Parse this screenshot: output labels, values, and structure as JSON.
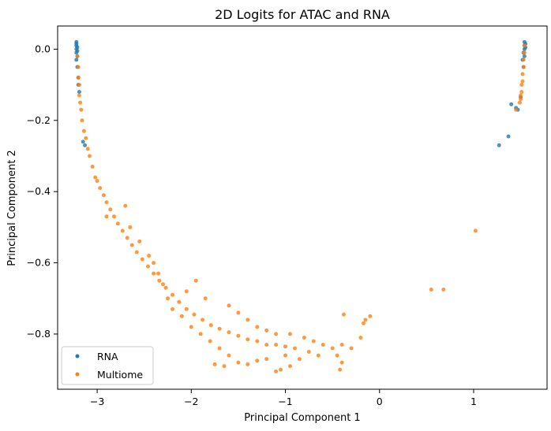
{
  "chart_data": {
    "type": "scatter",
    "title": "2D Logits for ATAC and RNA",
    "xlabel": "Principal Component 1",
    "ylabel": "Principal Component 2",
    "xlim": [
      -3.42,
      1.78
    ],
    "ylim": [
      -0.955,
      0.065
    ],
    "xticks": [
      -3,
      -2,
      -1,
      0,
      1
    ],
    "yticks": [
      0.0,
      -0.2,
      -0.4,
      -0.6,
      -0.8
    ],
    "xtick_labels": [
      "−3",
      "−2",
      "−1",
      "0",
      "1"
    ],
    "ytick_labels": [
      "0.0",
      "−0.2",
      "−0.4",
      "−0.6",
      "−0.8"
    ],
    "grid": false,
    "legend_position": "lower-left",
    "series": [
      {
        "name": "RNA",
        "color": "#1f77b4",
        "points": [
          [
            -3.22,
            0.02
          ],
          [
            -3.22,
            0.015
          ],
          [
            -3.22,
            0.01
          ],
          [
            -3.21,
            0.005
          ],
          [
            -3.22,
            0.0
          ],
          [
            -3.21,
            -0.005
          ],
          [
            -3.22,
            -0.01
          ],
          [
            -3.21,
            -0.02
          ],
          [
            -3.22,
            -0.03
          ],
          [
            -3.21,
            -0.05
          ],
          [
            -3.2,
            -0.08
          ],
          [
            -3.2,
            -0.1
          ],
          [
            -3.19,
            -0.12
          ],
          [
            -3.15,
            -0.26
          ],
          [
            -3.13,
            -0.27
          ],
          [
            1.54,
            0.02
          ],
          [
            1.55,
            0.015
          ],
          [
            1.54,
            0.01
          ],
          [
            1.55,
            0.005
          ],
          [
            1.54,
            0.0
          ],
          [
            1.53,
            -0.01
          ],
          [
            1.54,
            -0.02
          ],
          [
            1.52,
            -0.03
          ],
          [
            1.53,
            -0.05
          ],
          [
            1.27,
            -0.27
          ],
          [
            1.37,
            -0.245
          ],
          [
            1.4,
            -0.155
          ],
          [
            1.45,
            -0.165
          ],
          [
            1.47,
            -0.17
          ],
          [
            1.5,
            -0.135
          ]
        ]
      },
      {
        "name": "Multiome",
        "color": "#ff7f0e",
        "points": [
          [
            -3.21,
            -0.02
          ],
          [
            -3.2,
            -0.05
          ],
          [
            -3.2,
            -0.08
          ],
          [
            -3.19,
            -0.1
          ],
          [
            -3.19,
            -0.13
          ],
          [
            -3.18,
            -0.15
          ],
          [
            -3.17,
            -0.17
          ],
          [
            -3.16,
            -0.2
          ],
          [
            -3.14,
            -0.23
          ],
          [
            -3.12,
            -0.25
          ],
          [
            -3.1,
            -0.28
          ],
          [
            -3.08,
            -0.3
          ],
          [
            -3.05,
            -0.33
          ],
          [
            -3.02,
            -0.36
          ],
          [
            -3.0,
            -0.37
          ],
          [
            -2.97,
            -0.39
          ],
          [
            -2.93,
            -0.41
          ],
          [
            -2.9,
            -0.43
          ],
          [
            -2.86,
            -0.45
          ],
          [
            -2.82,
            -0.47
          ],
          [
            -2.78,
            -0.49
          ],
          [
            -2.73,
            -0.51
          ],
          [
            -2.68,
            -0.53
          ],
          [
            -2.63,
            -0.55
          ],
          [
            -2.58,
            -0.57
          ],
          [
            -2.52,
            -0.59
          ],
          [
            -2.46,
            -0.61
          ],
          [
            -2.4,
            -0.63
          ],
          [
            -2.34,
            -0.65
          ],
          [
            -2.27,
            -0.67
          ],
          [
            -2.2,
            -0.69
          ],
          [
            -2.13,
            -0.71
          ],
          [
            -2.05,
            -0.73
          ],
          [
            -1.97,
            -0.745
          ],
          [
            -1.88,
            -0.76
          ],
          [
            -1.79,
            -0.775
          ],
          [
            -1.7,
            -0.785
          ],
          [
            -1.6,
            -0.795
          ],
          [
            -1.5,
            -0.805
          ],
          [
            -1.4,
            -0.815
          ],
          [
            -1.3,
            -0.82
          ],
          [
            -1.2,
            -0.83
          ],
          [
            -1.1,
            -0.83
          ],
          [
            -1.0,
            -0.835
          ],
          [
            -0.9,
            -0.84
          ],
          [
            -2.65,
            -0.5
          ],
          [
            -2.55,
            -0.54
          ],
          [
            -2.45,
            -0.58
          ],
          [
            -2.4,
            -0.6
          ],
          [
            -2.35,
            -0.63
          ],
          [
            -2.3,
            -0.66
          ],
          [
            -2.25,
            -0.7
          ],
          [
            -2.2,
            -0.73
          ],
          [
            -2.1,
            -0.75
          ],
          [
            -2.0,
            -0.78
          ],
          [
            -1.9,
            -0.8
          ],
          [
            -1.8,
            -0.82
          ],
          [
            -1.7,
            -0.84
          ],
          [
            -1.6,
            -0.86
          ],
          [
            -1.5,
            -0.88
          ],
          [
            -1.4,
            -0.885
          ],
          [
            -1.3,
            -0.875
          ],
          [
            -1.2,
            -0.87
          ],
          [
            -1.0,
            -0.86
          ],
          [
            -1.6,
            -0.72
          ],
          [
            -1.5,
            -0.74
          ],
          [
            -1.4,
            -0.76
          ],
          [
            -1.3,
            -0.78
          ],
          [
            -1.2,
            -0.79
          ],
          [
            -1.1,
            -0.8
          ],
          [
            -0.95,
            -0.8
          ],
          [
            -0.8,
            -0.81
          ],
          [
            -0.7,
            -0.82
          ],
          [
            -0.6,
            -0.83
          ],
          [
            -0.5,
            -0.84
          ],
          [
            -0.45,
            -0.86
          ],
          [
            -0.4,
            -0.83
          ],
          [
            -0.4,
            -0.88
          ],
          [
            -0.42,
            -0.9
          ],
          [
            -0.38,
            -0.745
          ],
          [
            -0.3,
            -0.84
          ],
          [
            -0.2,
            -0.81
          ],
          [
            -0.15,
            -0.76
          ],
          [
            -0.17,
            -0.77
          ],
          [
            -0.1,
            -0.75
          ],
          [
            -1.95,
            -0.65
          ],
          [
            -2.05,
            -0.68
          ],
          [
            -1.85,
            -0.7
          ],
          [
            -2.9,
            -0.47
          ],
          [
            -2.7,
            -0.44
          ],
          [
            -1.75,
            -0.885
          ],
          [
            -1.65,
            -0.89
          ],
          [
            -0.75,
            -0.85
          ],
          [
            -0.85,
            -0.87
          ],
          [
            -0.95,
            -0.89
          ],
          [
            -1.05,
            -0.9
          ],
          [
            -1.1,
            -0.905
          ],
          [
            -0.65,
            -0.86
          ],
          [
            1.54,
            0.01
          ],
          [
            1.54,
            -0.01
          ],
          [
            1.53,
            -0.03
          ],
          [
            1.53,
            -0.05
          ],
          [
            1.52,
            -0.07
          ],
          [
            1.52,
            -0.09
          ],
          [
            1.51,
            -0.1
          ],
          [
            1.51,
            -0.12
          ],
          [
            1.5,
            -0.13
          ],
          [
            1.5,
            -0.14
          ],
          [
            1.49,
            -0.15
          ],
          [
            1.45,
            -0.17
          ],
          [
            1.02,
            -0.51
          ],
          [
            0.55,
            -0.675
          ],
          [
            0.68,
            -0.675
          ]
        ]
      }
    ]
  }
}
